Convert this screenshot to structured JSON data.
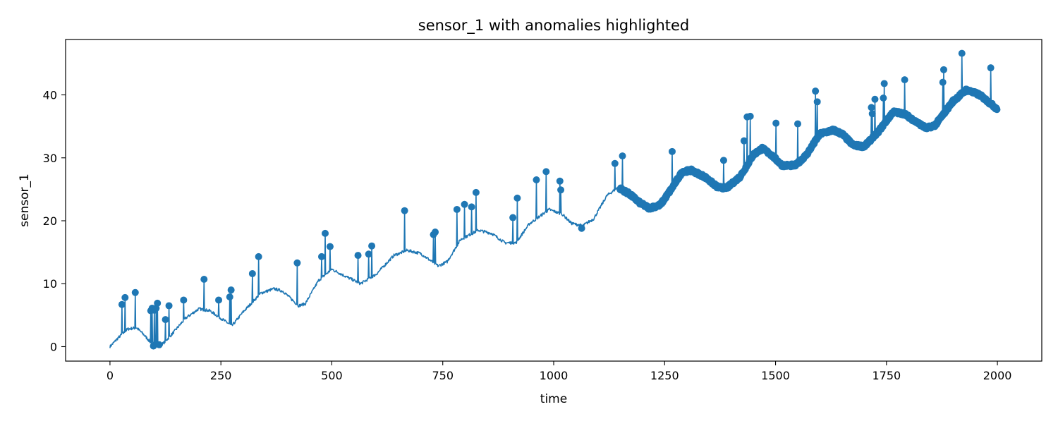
{
  "chart_data": {
    "type": "line",
    "title": "sensor_1 with anomalies highlighted",
    "xlabel": "time",
    "ylabel": "sensor_1",
    "xlim": [
      -100,
      2100
    ],
    "ylim": [
      -2.3,
      48.8
    ],
    "xticks": [
      0,
      250,
      500,
      750,
      1000,
      1250,
      1500,
      1750,
      2000
    ],
    "yticks": [
      0,
      10,
      20,
      30,
      40
    ],
    "grid": false,
    "legend": "none",
    "series_color": "#1f77b4",
    "series": [
      {
        "kind": "line",
        "x_start": 0,
        "x_end": 1999,
        "baseline_points": [
          [
            0,
            0.0
          ],
          [
            20,
            1.5
          ],
          [
            40,
            2.8
          ],
          [
            60,
            3.0
          ],
          [
            75,
            2.0
          ],
          [
            90,
            0.8
          ],
          [
            105,
            0.2
          ],
          [
            120,
            0.5
          ],
          [
            140,
            2.0
          ],
          [
            170,
            4.5
          ],
          [
            200,
            6.0
          ],
          [
            225,
            5.7
          ],
          [
            250,
            4.5
          ],
          [
            275,
            3.3
          ],
          [
            300,
            5.5
          ],
          [
            340,
            8.5
          ],
          [
            370,
            9.2
          ],
          [
            390,
            8.8
          ],
          [
            425,
            6.5
          ],
          [
            440,
            6.8
          ],
          [
            470,
            10.5
          ],
          [
            500,
            12.3
          ],
          [
            530,
            11.2
          ],
          [
            565,
            10.0
          ],
          [
            600,
            11.5
          ],
          [
            640,
            14.5
          ],
          [
            670,
            15.3
          ],
          [
            700,
            14.8
          ],
          [
            740,
            12.8
          ],
          [
            760,
            13.5
          ],
          [
            790,
            17.0
          ],
          [
            830,
            18.5
          ],
          [
            860,
            18.0
          ],
          [
            890,
            16.5
          ],
          [
            915,
            16.5
          ],
          [
            945,
            19.5
          ],
          [
            990,
            21.8
          ],
          [
            1020,
            21.0
          ],
          [
            1040,
            19.6
          ],
          [
            1065,
            19.2
          ],
          [
            1090,
            20.3
          ],
          [
            1120,
            24.0
          ],
          [
            1145,
            25.3
          ],
          [
            1170,
            24.3
          ],
          [
            1195,
            22.8
          ],
          [
            1215,
            22.0
          ],
          [
            1240,
            22.5
          ],
          [
            1260,
            24.5
          ],
          [
            1290,
            27.8
          ],
          [
            1310,
            28.0
          ],
          [
            1340,
            27.0
          ],
          [
            1370,
            25.3
          ],
          [
            1390,
            25.2
          ],
          [
            1420,
            27.0
          ],
          [
            1450,
            30.5
          ],
          [
            1470,
            31.5
          ],
          [
            1490,
            30.5
          ],
          [
            1515,
            28.8
          ],
          [
            1545,
            28.8
          ],
          [
            1570,
            30.5
          ],
          [
            1600,
            33.8
          ],
          [
            1630,
            34.4
          ],
          [
            1650,
            33.8
          ],
          [
            1675,
            32.0
          ],
          [
            1700,
            31.8
          ],
          [
            1730,
            34.0
          ],
          [
            1765,
            37.3
          ],
          [
            1790,
            37.0
          ],
          [
            1815,
            35.8
          ],
          [
            1840,
            34.7
          ],
          [
            1860,
            35.2
          ],
          [
            1900,
            39.0
          ],
          [
            1930,
            40.8
          ],
          [
            1960,
            40.0
          ],
          [
            1999,
            37.8
          ]
        ]
      },
      {
        "kind": "anomaly-markers",
        "points": [
          [
            27,
            6.7
          ],
          [
            34,
            7.8
          ],
          [
            57,
            8.6
          ],
          [
            92,
            5.7
          ],
          [
            95,
            6.1
          ],
          [
            98,
            0.1
          ],
          [
            100,
            5.8
          ],
          [
            104,
            6.1
          ],
          [
            107,
            6.9
          ],
          [
            111,
            0.3
          ],
          [
            125,
            4.3
          ],
          [
            133,
            6.5
          ],
          [
            166,
            7.4
          ],
          [
            212,
            10.7
          ],
          [
            245,
            7.4
          ],
          [
            270,
            7.9
          ],
          [
            273,
            9.0
          ],
          [
            321,
            11.6
          ],
          [
            335,
            14.3
          ],
          [
            422,
            13.3
          ],
          [
            477,
            14.3
          ],
          [
            485,
            18.0
          ],
          [
            496,
            15.9
          ],
          [
            559,
            14.5
          ],
          [
            583,
            14.7
          ],
          [
            590,
            16.0
          ],
          [
            664,
            21.6
          ],
          [
            729,
            17.8
          ],
          [
            733,
            18.2
          ],
          [
            782,
            21.8
          ],
          [
            799,
            22.6
          ],
          [
            815,
            22.2
          ],
          [
            825,
            24.5
          ],
          [
            908,
            20.5
          ],
          [
            918,
            23.6
          ],
          [
            961,
            26.5
          ],
          [
            983,
            27.8
          ],
          [
            1014,
            26.3
          ],
          [
            1016,
            24.9
          ],
          [
            1063,
            18.8
          ],
          [
            1138,
            29.1
          ],
          [
            1155,
            30.3
          ],
          [
            1267,
            31.0
          ],
          [
            1383,
            29.6
          ],
          [
            1429,
            32.7
          ],
          [
            1436,
            36.5
          ],
          [
            1443,
            36.6
          ],
          [
            1501,
            35.5
          ],
          [
            1550,
            35.4
          ],
          [
            1590,
            40.6
          ],
          [
            1594,
            38.9
          ],
          [
            1716,
            38.0
          ],
          [
            1718,
            37.0
          ],
          [
            1724,
            39.3
          ],
          [
            1743,
            39.5
          ],
          [
            1745,
            41.8
          ],
          [
            1791,
            42.4
          ],
          [
            1877,
            42.0
          ],
          [
            1879,
            44.0
          ],
          [
            1920,
            46.6
          ],
          [
            1985,
            44.3
          ]
        ],
        "dense_ranges": [
          [
            1150,
            1999
          ]
        ]
      }
    ]
  }
}
